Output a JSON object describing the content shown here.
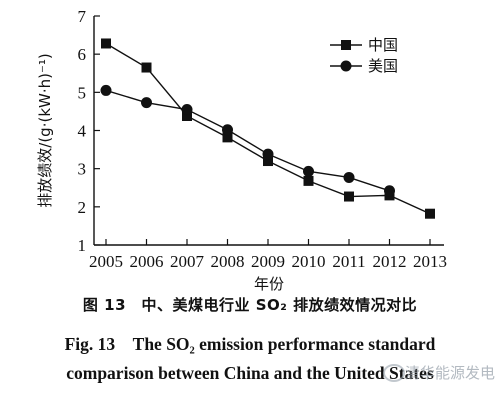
{
  "chart_data": {
    "type": "line",
    "xlabel": "年份",
    "ylabel": "排放绩效/(g·(kW·h)⁻¹)",
    "categories": [
      "2005",
      "2006",
      "2007",
      "2008",
      "2009",
      "2010",
      "2011",
      "2012",
      "2013"
    ],
    "yticks": [
      "1",
      "2",
      "3",
      "4",
      "5",
      "6",
      "7"
    ],
    "ylim": [
      1,
      7
    ],
    "xlim": [
      2005,
      2013
    ],
    "grid": false,
    "legend_position": "top-right",
    "series": [
      {
        "name": "中国",
        "marker": "square",
        "points": [
          [
            2005,
            6.28
          ],
          [
            2006,
            5.65
          ],
          [
            2007,
            4.38
          ],
          [
            2008,
            3.82
          ],
          [
            2009,
            3.2
          ],
          [
            2010,
            2.68
          ],
          [
            2011,
            2.27
          ],
          [
            2012,
            2.3
          ],
          [
            2013,
            1.82
          ]
        ]
      },
      {
        "name": "美国",
        "marker": "circle",
        "points": [
          [
            2005,
            5.05
          ],
          [
            2006,
            4.73
          ],
          [
            2007,
            4.55
          ],
          [
            2008,
            4.02
          ],
          [
            2009,
            3.38
          ],
          [
            2010,
            2.93
          ],
          [
            2011,
            2.77
          ],
          [
            2012,
            2.42
          ]
        ]
      }
    ]
  },
  "caption": {
    "cn": "图 13　中、美煤电行业 SO₂ 排放绩效情况对比",
    "en_line1": "Fig. 13　The SO₂ emission performance standard",
    "en_line2": "comparison between China and the United States"
  },
  "watermark": "清华能源发电",
  "colors": {
    "ink": "#111111",
    "watermark": "#9aa3ad"
  }
}
